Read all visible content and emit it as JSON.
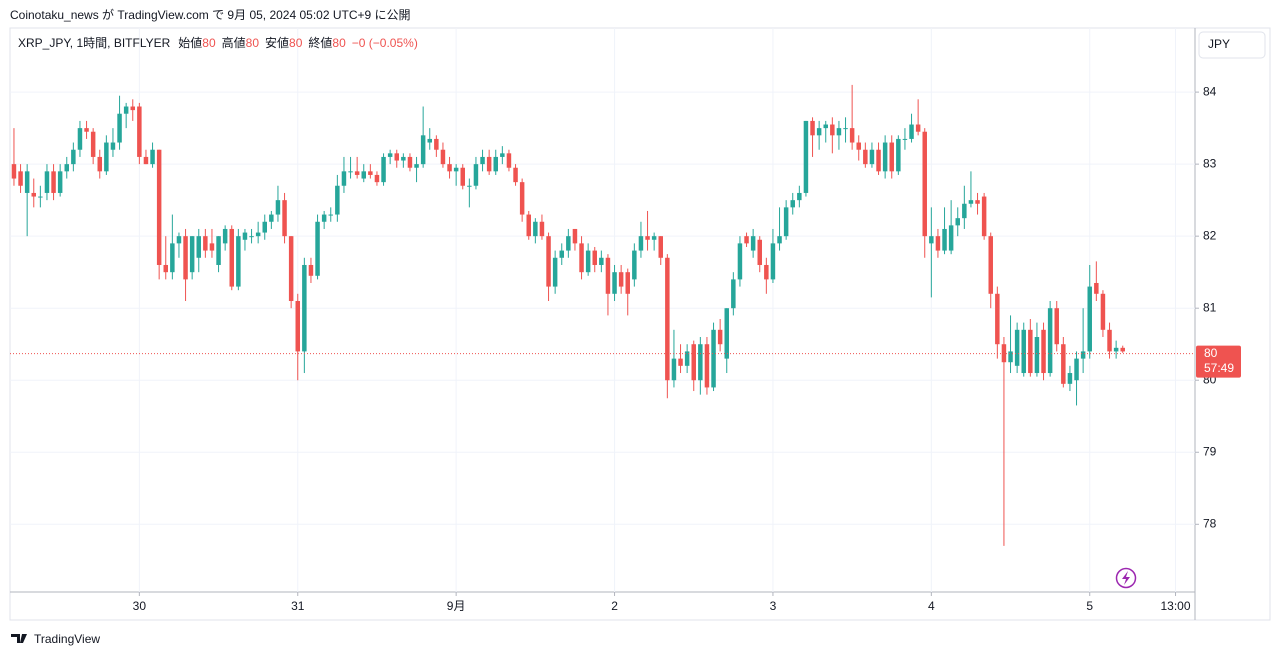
{
  "header": "Coinotaku_news が TradingView.com で 9月 05, 2024 05:02 UTC+9 に公開",
  "footer": "TradingView",
  "chart_data": {
    "type": "candlestick",
    "legend": {
      "symbol": "XRP_JPY, 1時間, BITFLYER",
      "open_label": "始値",
      "open": 80,
      "high_label": "高値",
      "high": 80,
      "low_label": "安値",
      "low": 80,
      "close_label": "終値",
      "close": 80,
      "change": "−0 (−0.05%)"
    },
    "currency": "JPY",
    "up_color": "#26a69a",
    "down_color": "#ef5350",
    "open": [
      83.0,
      82.9,
      82.6,
      82.6,
      82.55,
      82.6,
      82.9,
      82.6,
      82.9,
      83.0,
      83.2,
      83.5,
      83.45,
      83.1,
      82.9,
      83.2,
      83.3,
      83.7,
      83.8,
      83.8,
      83.1,
      83.0,
      83.2,
      81.6,
      81.5,
      81.9,
      82.0,
      81.5,
      81.7,
      82.0,
      81.9,
      81.6,
      81.9,
      82.1,
      81.3,
      81.95,
      82.0,
      82.0,
      82.05,
      82.2,
      82.3,
      82.5,
      82.0,
      81.1,
      80.4,
      81.6,
      81.45,
      82.2,
      82.3,
      82.3,
      82.7,
      82.9,
      82.9,
      82.8,
      82.9,
      82.85,
      82.75,
      83.1,
      83.15,
      83.05,
      83.1,
      82.95,
      83.0,
      83.3,
      83.35,
      83.2,
      83.0,
      82.9,
      82.95,
      82.7,
      82.7,
      83.0,
      83.1,
      82.9,
      83.1,
      83.15,
      82.95,
      82.75,
      82.3,
      82.0,
      82.2,
      82.0,
      81.3,
      81.7,
      81.8,
      82.1,
      81.9,
      81.5,
      81.8,
      81.6,
      81.7,
      81.2,
      81.5,
      81.5,
      81.4,
      81.8,
      82.0,
      81.95,
      82.0,
      81.7,
      80.0,
      80.3,
      80.2,
      80.5,
      80.0,
      80.5,
      79.9,
      80.7,
      80.3,
      81.0,
      81.4,
      82.0,
      81.8,
      81.95,
      81.6,
      81.4,
      81.9,
      82.0,
      82.4,
      82.5,
      82.6,
      83.6,
      83.4,
      83.5,
      83.55,
      83.4,
      83.5,
      83.5,
      83.3,
      83.2,
      83.0,
      83.2,
      82.9,
      83.3,
      82.9,
      83.35,
      83.35,
      83.55,
      83.45,
      81.9,
      82.0,
      81.8,
      81.8,
      82.15,
      82.25,
      82.45,
      82.5,
      82.55,
      82.0,
      81.2,
      80.5,
      80.25,
      80.2,
      80.1,
      80.7,
      80.1,
      80.7,
      80.1,
      81.0,
      80.5,
      79.95,
      80.0,
      80.3,
      80.4,
      81.35,
      81.2,
      80.7,
      80.4,
      80.45
    ],
    "high": [
      83.5,
      83.0,
      83.0,
      82.8,
      82.7,
      83.0,
      83.0,
      83.0,
      83.1,
      83.3,
      83.6,
      83.6,
      83.5,
      83.2,
      83.4,
      83.5,
      83.95,
      83.85,
      83.9,
      83.85,
      83.2,
      83.3,
      83.2,
      82.0,
      82.3,
      82.05,
      82.1,
      82.0,
      82.1,
      82.1,
      82.1,
      82.0,
      82.15,
      82.15,
      82.1,
      82.1,
      82.1,
      82.2,
      82.3,
      82.35,
      82.7,
      82.6,
      82.0,
      81.2,
      81.7,
      81.7,
      82.3,
      82.35,
      82.4,
      82.85,
      83.1,
      83.1,
      83.1,
      83.0,
      83.0,
      82.9,
      83.15,
      83.2,
      83.2,
      83.15,
      83.15,
      83.1,
      83.8,
      83.5,
      83.4,
      83.3,
      83.1,
      83.0,
      83.0,
      82.8,
      83.1,
      83.2,
      83.2,
      83.2,
      83.25,
      83.2,
      83.0,
      82.8,
      82.35,
      82.25,
      82.3,
      82.05,
      81.8,
      81.9,
      82.1,
      82.1,
      82.0,
      81.9,
      81.85,
      81.8,
      81.75,
      81.6,
      81.6,
      81.55,
      81.9,
      82.2,
      82.35,
      82.05,
      82.0,
      81.75,
      80.7,
      80.5,
      80.5,
      80.55,
      80.6,
      80.6,
      80.8,
      80.85,
      81.0,
      81.5,
      82.0,
      82.05,
      82.1,
      82.0,
      81.7,
      82.1,
      82.4,
      82.5,
      82.6,
      82.7,
      83.6,
      83.65,
      83.6,
      83.6,
      83.65,
      83.6,
      83.65,
      84.1,
      83.4,
      83.3,
      83.3,
      83.3,
      83.4,
      83.4,
      83.4,
      83.5,
      83.7,
      83.9,
      83.5,
      82.4,
      82.1,
      82.4,
      82.5,
      82.4,
      82.7,
      82.9,
      82.6,
      82.6,
      82.05,
      81.3,
      80.6,
      80.9,
      80.8,
      80.8,
      80.85,
      80.8,
      80.8,
      81.1,
      81.1,
      80.6,
      80.2,
      80.4,
      81.0,
      81.6,
      81.65,
      81.25,
      80.8,
      80.55,
      80.48
    ],
    "low": [
      82.7,
      82.6,
      82.0,
      82.4,
      82.4,
      82.5,
      82.5,
      82.55,
      82.8,
      82.9,
      83.1,
      83.35,
      83.0,
      82.8,
      82.85,
      83.1,
      83.2,
      83.5,
      83.6,
      83.0,
      83.0,
      82.95,
      81.4,
      81.4,
      81.4,
      81.7,
      81.1,
      81.4,
      81.5,
      81.7,
      81.7,
      81.5,
      81.8,
      81.25,
      81.25,
      81.8,
      81.9,
      81.9,
      81.95,
      82.1,
      82.2,
      81.9,
      81.0,
      80.0,
      80.1,
      81.35,
      81.4,
      82.1,
      82.2,
      82.2,
      82.6,
      82.8,
      82.8,
      82.75,
      82.8,
      82.7,
      82.7,
      83.0,
      82.95,
      82.95,
      82.9,
      82.75,
      82.95,
      83.2,
      83.1,
      82.95,
      82.8,
      82.7,
      82.65,
      82.4,
      82.65,
      82.9,
      82.85,
      82.85,
      83.0,
      82.9,
      82.7,
      82.2,
      81.95,
      81.9,
      81.95,
      81.1,
      81.2,
      81.6,
      81.7,
      81.8,
      81.4,
      81.45,
      81.5,
      81.5,
      80.9,
      81.1,
      81.2,
      80.9,
      81.3,
      81.7,
      81.8,
      81.8,
      81.6,
      79.75,
      79.9,
      80.1,
      80.1,
      79.85,
      79.8,
      79.8,
      79.85,
      80.4,
      80.1,
      80.9,
      81.3,
      81.85,
      81.7,
      81.5,
      81.2,
      81.35,
      81.8,
      81.95,
      82.3,
      82.4,
      82.55,
      83.1,
      83.2,
      83.3,
      83.15,
      83.2,
      83.3,
      83.2,
      83.05,
      82.95,
      82.95,
      82.85,
      82.8,
      82.8,
      82.85,
      83.2,
      83.3,
      83.4,
      81.7,
      81.15,
      81.7,
      81.75,
      81.75,
      82.0,
      82.1,
      82.4,
      82.3,
      81.95,
      81.0,
      80.3,
      77.7,
      80.1,
      80.1,
      80.05,
      80.05,
      80.05,
      80.0,
      80.05,
      80.4,
      79.9,
      79.85,
      79.65,
      80.1,
      80.3,
      81.1,
      80.6,
      80.3,
      80.3,
      80.38
    ],
    "close": [
      82.8,
      82.7,
      82.9,
      82.55,
      82.55,
      82.9,
      82.6,
      82.9,
      83.0,
      83.2,
      83.5,
      83.45,
      83.1,
      82.9,
      83.3,
      83.3,
      83.7,
      83.8,
      83.75,
      83.1,
      83.0,
      83.2,
      81.6,
      81.5,
      81.9,
      82.0,
      81.4,
      82.0,
      82.0,
      81.8,
      81.8,
      82.0,
      82.1,
      81.3,
      82.0,
      82.05,
      82.0,
      82.05,
      82.2,
      82.3,
      82.5,
      82.0,
      81.1,
      80.4,
      81.6,
      81.45,
      82.2,
      82.3,
      82.3,
      82.7,
      82.9,
      82.9,
      82.85,
      82.9,
      82.85,
      82.75,
      83.1,
      83.15,
      83.05,
      83.1,
      82.95,
      83.0,
      83.4,
      83.35,
      83.2,
      83.0,
      82.9,
      82.95,
      82.7,
      82.7,
      83.0,
      83.1,
      82.9,
      83.1,
      83.15,
      82.95,
      82.75,
      82.3,
      82.0,
      82.2,
      82.0,
      81.3,
      81.7,
      81.8,
      82.0,
      81.9,
      81.5,
      81.8,
      81.6,
      81.7,
      81.2,
      81.5,
      81.3,
      81.2,
      81.8,
      82.0,
      81.95,
      82.0,
      81.7,
      80.0,
      80.3,
      80.2,
      80.4,
      80.0,
      80.5,
      79.9,
      80.7,
      80.5,
      81.0,
      81.4,
      81.9,
      81.9,
      82.0,
      81.6,
      81.4,
      81.9,
      82.0,
      82.4,
      82.5,
      82.6,
      83.6,
      83.4,
      83.5,
      83.55,
      83.4,
      83.5,
      83.5,
      83.3,
      83.2,
      83.0,
      83.2,
      82.9,
      83.3,
      82.9,
      83.35,
      83.35,
      83.55,
      83.45,
      82.0,
      82.0,
      81.8,
      82.1,
      82.15,
      82.25,
      82.45,
      82.5,
      82.45,
      82.0,
      81.2,
      80.5,
      80.25,
      80.4,
      80.7,
      80.7,
      80.1,
      80.6,
      80.1,
      81.0,
      80.5,
      79.95,
      80.1,
      80.3,
      80.4,
      81.3,
      81.2,
      80.7,
      80.4,
      80.45,
      80.4
    ],
    "xlim": [
      -0.6,
      178.95
    ],
    "xticks": [
      {
        "value": 19,
        "label": "30"
      },
      {
        "value": 43,
        "label": "31"
      },
      {
        "value": 67,
        "label": "9月"
      },
      {
        "value": 91,
        "label": "2"
      },
      {
        "value": 115,
        "label": "3"
      },
      {
        "value": 139,
        "label": "4"
      },
      {
        "value": 163,
        "label": "5"
      },
      {
        "value": 176,
        "label": "13:00"
      }
    ],
    "ylim": [
      77.06,
      84.89
    ],
    "yticks": [
      78,
      79,
      80,
      81,
      82,
      83,
      84
    ],
    "grid": true,
    "last_price": {
      "value": 80.37,
      "label": "80",
      "countdown": "57:49"
    }
  }
}
